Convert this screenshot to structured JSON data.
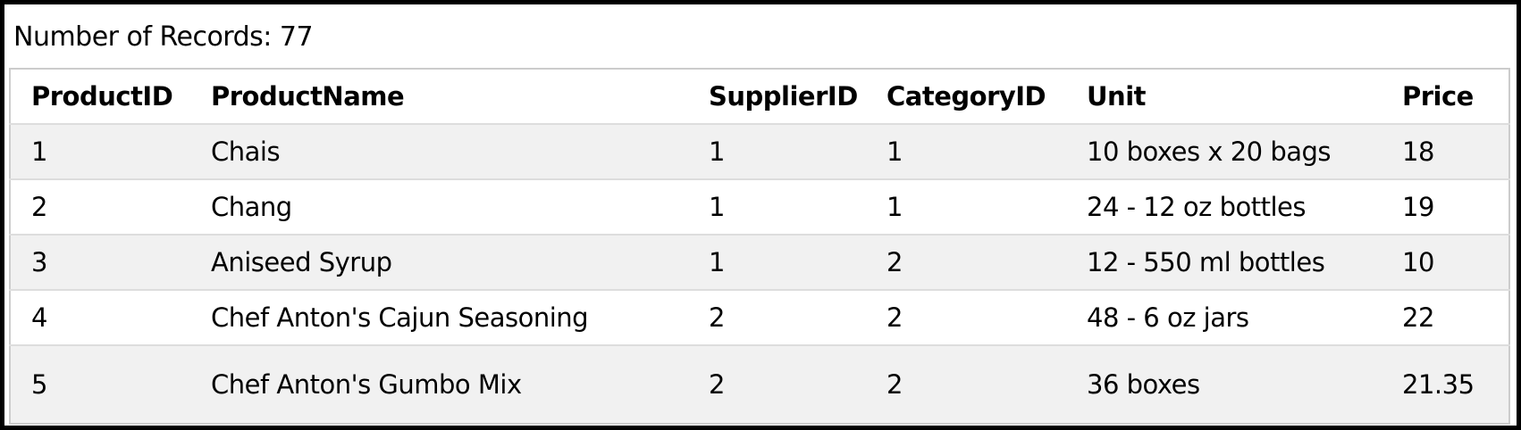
{
  "page": {
    "record_count_label": "Number of Records: 77"
  },
  "table": {
    "columns": [
      "ProductID",
      "ProductName",
      "SupplierID",
      "CategoryID",
      "Unit",
      "Price"
    ],
    "rows": [
      [
        "1",
        "Chais",
        "1",
        "1",
        "10 boxes x 20 bags",
        "18"
      ],
      [
        "2",
        "Chang",
        "1",
        "1",
        "24 - 12 oz bottles",
        "19"
      ],
      [
        "3",
        "Aniseed Syrup",
        "1",
        "2",
        "12 - 550 ml bottles",
        "10"
      ],
      [
        "4",
        "Chef Anton's Cajun Seasoning",
        "2",
        "2",
        "48 - 6 oz jars",
        "22"
      ],
      [
        "5",
        "Chef Anton's Gumbo Mix",
        "2",
        "2",
        "36 boxes",
        "21.35"
      ]
    ]
  },
  "colors": {
    "frame": "#000000",
    "text": "#000000",
    "stripe": "#f1f1f1",
    "row_border": "#dddddd",
    "table_border": "#cccccc"
  }
}
